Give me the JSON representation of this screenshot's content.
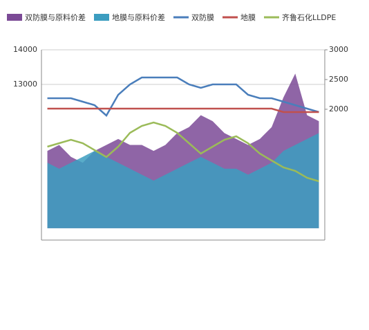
{
  "chart_data": {
    "type": "line",
    "categories": [
      null,
      null,
      null,
      null,
      null,
      null,
      null,
      null,
      null,
      null,
      null,
      null,
      null,
      null,
      null,
      null,
      null,
      null,
      null,
      null,
      null,
      null,
      null,
      null
    ],
    "ylim": [
      8500,
      14000
    ],
    "yticks": [
      13000,
      14000
    ],
    "y2lim": [
      -200,
      3000
    ],
    "y2ticks": [
      2000,
      2500,
      3000
    ],
    "grid": true,
    "legend": "top",
    "series": [
      {
        "name": "双防膜与原料价差",
        "color": "#7b4a96",
        "kind": "area",
        "axis": "y2",
        "values": [
          1300,
          1400,
          1200,
          1100,
          1300,
          1400,
          1500,
          1400,
          1400,
          1300,
          1400,
          1600,
          1700,
          1900,
          1800,
          1600,
          1500,
          1400,
          1500,
          1700,
          2200,
          2600,
          1900,
          1800
        ]
      },
      {
        "name": "地膜与原料价差",
        "color": "#3c9dc0",
        "kind": "area",
        "axis": "y2",
        "values": [
          1100,
          1000,
          1100,
          1200,
          1300,
          1200,
          1100,
          1000,
          900,
          800,
          900,
          1000,
          1100,
          1200,
          1100,
          1000,
          1000,
          900,
          1000,
          1100,
          1300,
          1400,
          1500,
          1600
        ]
      },
      {
        "name": "双防膜",
        "color": "#4a7ebb",
        "kind": "line",
        "values": [
          12600,
          12600,
          12600,
          12500,
          12400,
          12100,
          12700,
          13000,
          13200,
          13200,
          13200,
          13200,
          13000,
          12900,
          13000,
          13000,
          13000,
          12700,
          12600,
          12600,
          12500,
          12400,
          12300,
          12200
        ]
      },
      {
        "name": "地膜",
        "color": "#c0504d",
        "kind": "line",
        "values": [
          12300,
          12300,
          12300,
          12300,
          12300,
          12300,
          12300,
          12300,
          12300,
          12300,
          12300,
          12300,
          12300,
          12300,
          12300,
          12300,
          12300,
          12300,
          12300,
          12300,
          12200,
          12200,
          12200,
          12200
        ]
      },
      {
        "name": "齐鲁石化LLDPE",
        "color": "#9bbb59",
        "kind": "line",
        "values": [
          11200,
          11300,
          11400,
          11300,
          11100,
          10900,
          11200,
          11600,
          11800,
          11900,
          11800,
          11600,
          11300,
          11000,
          11200,
          11400,
          11500,
          11300,
          11000,
          10800,
          10600,
          10500,
          10300,
          10200
        ]
      }
    ]
  }
}
